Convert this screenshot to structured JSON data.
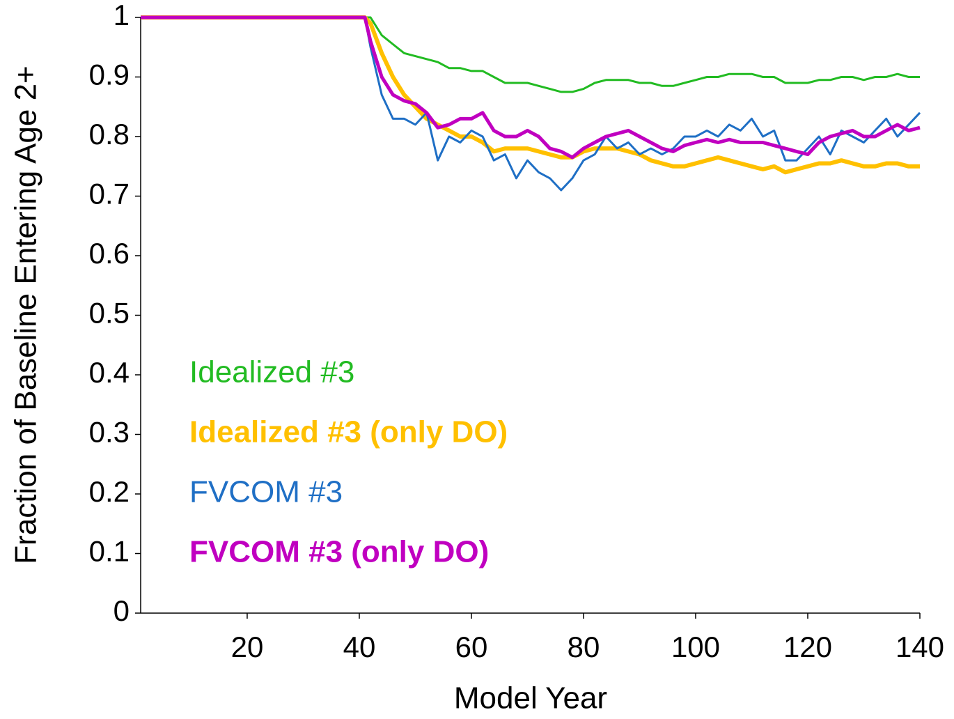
{
  "chart_data": {
    "type": "line",
    "xlabel": "Model Year",
    "ylabel": "Fraction of Baseline Entering Age 2+",
    "xlim": [
      1,
      140
    ],
    "ylim": [
      0,
      1
    ],
    "xticks": [
      20,
      40,
      60,
      80,
      100,
      120,
      140
    ],
    "yticks": [
      0,
      0.1,
      0.2,
      0.3,
      0.4,
      0.5,
      0.6,
      0.7,
      0.8,
      0.9,
      1
    ],
    "grid": false,
    "legend": "lower left",
    "x": [
      1,
      41,
      42,
      44,
      46,
      48,
      50,
      52,
      54,
      56,
      58,
      60,
      62,
      64,
      66,
      68,
      70,
      72,
      74,
      76,
      78,
      80,
      82,
      84,
      86,
      88,
      90,
      92,
      94,
      96,
      98,
      100,
      102,
      104,
      106,
      108,
      110,
      112,
      114,
      116,
      118,
      120,
      122,
      124,
      126,
      128,
      130,
      132,
      134,
      136,
      138,
      140
    ],
    "series": [
      {
        "name": "Idealized #3",
        "color": "#22bb22",
        "width": 3,
        "bold": false,
        "values": [
          1,
          1,
          1,
          0.97,
          0.955,
          0.94,
          0.935,
          0.93,
          0.925,
          0.915,
          0.915,
          0.91,
          0.91,
          0.9,
          0.89,
          0.89,
          0.89,
          0.885,
          0.88,
          0.875,
          0.875,
          0.88,
          0.89,
          0.895,
          0.895,
          0.895,
          0.89,
          0.89,
          0.885,
          0.885,
          0.89,
          0.895,
          0.9,
          0.9,
          0.905,
          0.905,
          0.905,
          0.9,
          0.9,
          0.89,
          0.89,
          0.89,
          0.895,
          0.895,
          0.9,
          0.9,
          0.895,
          0.9,
          0.9,
          0.905,
          0.9,
          0.9
        ]
      },
      {
        "name": "Idealized #3 (only DO)",
        "color": "#ffc000",
        "width": 6,
        "bold": true,
        "values": [
          1,
          1,
          0.99,
          0.94,
          0.9,
          0.87,
          0.85,
          0.83,
          0.82,
          0.81,
          0.8,
          0.8,
          0.79,
          0.775,
          0.78,
          0.78,
          0.78,
          0.775,
          0.77,
          0.765,
          0.765,
          0.775,
          0.78,
          0.78,
          0.78,
          0.775,
          0.77,
          0.76,
          0.755,
          0.75,
          0.75,
          0.755,
          0.76,
          0.765,
          0.76,
          0.755,
          0.75,
          0.745,
          0.75,
          0.74,
          0.745,
          0.75,
          0.755,
          0.755,
          0.76,
          0.755,
          0.75,
          0.75,
          0.755,
          0.755,
          0.75,
          0.75
        ]
      },
      {
        "name": "FVCOM #3",
        "color": "#1f6fc5",
        "width": 3,
        "bold": false,
        "values": [
          1,
          1,
          0.95,
          0.87,
          0.83,
          0.83,
          0.82,
          0.84,
          0.76,
          0.8,
          0.79,
          0.81,
          0.8,
          0.76,
          0.77,
          0.73,
          0.76,
          0.74,
          0.73,
          0.71,
          0.73,
          0.76,
          0.77,
          0.8,
          0.78,
          0.79,
          0.77,
          0.78,
          0.77,
          0.78,
          0.8,
          0.8,
          0.81,
          0.8,
          0.82,
          0.81,
          0.83,
          0.8,
          0.81,
          0.76,
          0.76,
          0.78,
          0.8,
          0.77,
          0.81,
          0.8,
          0.79,
          0.81,
          0.83,
          0.8,
          0.82,
          0.84
        ]
      },
      {
        "name": "FVCOM #3 (only DO)",
        "color": "#c000c0",
        "width": 5,
        "bold": true,
        "values": [
          1,
          1,
          0.96,
          0.9,
          0.87,
          0.86,
          0.855,
          0.84,
          0.815,
          0.82,
          0.83,
          0.83,
          0.84,
          0.81,
          0.8,
          0.8,
          0.81,
          0.8,
          0.78,
          0.775,
          0.765,
          0.78,
          0.79,
          0.8,
          0.805,
          0.81,
          0.8,
          0.79,
          0.78,
          0.775,
          0.785,
          0.79,
          0.795,
          0.79,
          0.795,
          0.79,
          0.79,
          0.79,
          0.785,
          0.78,
          0.775,
          0.77,
          0.79,
          0.8,
          0.805,
          0.81,
          0.8,
          0.8,
          0.81,
          0.82,
          0.81,
          0.815
        ]
      }
    ]
  }
}
